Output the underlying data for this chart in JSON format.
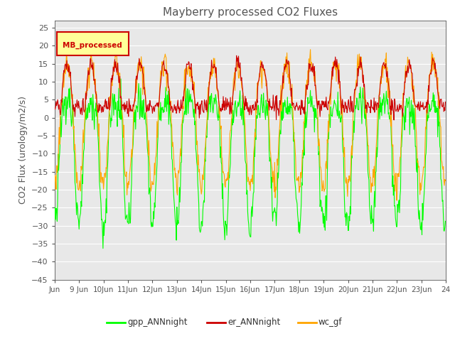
{
  "title": "Mayberry processed CO2 Fluxes",
  "ylabel": "CO2 Flux (urology/m2/s)",
  "ylim": [
    -45,
    27
  ],
  "yticks": [
    25,
    20,
    15,
    10,
    5,
    0,
    -5,
    -10,
    -15,
    -20,
    -25,
    -30,
    -35,
    -40,
    -45
  ],
  "legend_label": "MB_processed",
  "legend_labels": [
    "gpp_ANNnight",
    "er_ANNnight",
    "wc_gf"
  ],
  "legend_colors": [
    "#00FF00",
    "#CC0000",
    "#FFA500"
  ],
  "line_colors": {
    "gpp": "#00FF00",
    "er": "#CC0000",
    "wc": "#FFA500"
  },
  "background_color": "#ffffff",
  "plot_bg_color": "#e8e8e8",
  "grid_color": "#ffffff",
  "xlabel_dates": [
    "Jun",
    "9 Jun",
    "10Jun",
    "11Jun",
    "12Jun",
    "13Jun",
    "14Jun",
    "15Jun",
    "16Jun",
    "17Jun",
    "18Jun",
    "19Jun",
    "20Jun",
    "21Jun",
    "22Jun",
    "23Jun",
    "24"
  ],
  "title_color": "#555555",
  "axis_color": "#555555",
  "n_days": 16,
  "n_per_day": 48
}
